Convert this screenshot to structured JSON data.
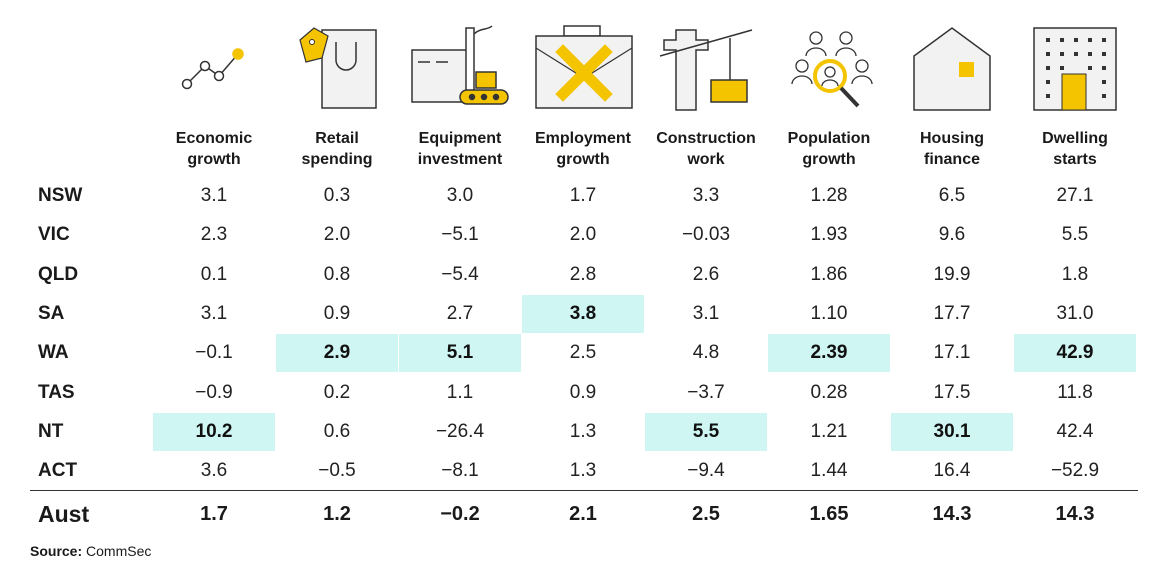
{
  "chart_data": {
    "type": "table",
    "columns": [
      {
        "label": "Economic\ngrowth",
        "icon": "line-chart-icon"
      },
      {
        "label": "Retail\nspending",
        "icon": "shopping-bag-icon"
      },
      {
        "label": "Equipment\ninvestment",
        "icon": "factory-conveyor-icon"
      },
      {
        "label": "Employment\ngrowth",
        "icon": "briefcase-cross-icon"
      },
      {
        "label": "Construction\nwork",
        "icon": "crane-icon"
      },
      {
        "label": "Population\ngrowth",
        "icon": "people-magnifier-icon"
      },
      {
        "label": "Housing\nfinance",
        "icon": "house-icon"
      },
      {
        "label": "Dwelling\nstarts",
        "icon": "apartment-building-icon"
      }
    ],
    "rows": [
      {
        "label": "NSW",
        "values": [
          "3.1",
          "0.3",
          "3.0",
          "1.7",
          "3.3",
          "1.28",
          "6.5",
          "27.1"
        ],
        "highlight": []
      },
      {
        "label": "VIC",
        "values": [
          "2.3",
          "2.0",
          "-5.1",
          "2.0",
          "-0.03",
          "1.93",
          "9.6",
          "5.5"
        ],
        "highlight": []
      },
      {
        "label": "QLD",
        "values": [
          "0.1",
          "0.8",
          "-5.4",
          "2.8",
          "2.6",
          "1.86",
          "19.9",
          "1.8"
        ],
        "highlight": []
      },
      {
        "label": "SA",
        "values": [
          "3.1",
          "0.9",
          "2.7",
          "3.8",
          "3.1",
          "1.10",
          "17.7",
          "31.0"
        ],
        "highlight": [
          3
        ]
      },
      {
        "label": "WA",
        "values": [
          "-0.1",
          "2.9",
          "5.1",
          "2.5",
          "4.8",
          "2.39",
          "17.1",
          "42.9"
        ],
        "highlight": [
          1,
          2,
          5,
          7
        ]
      },
      {
        "label": "TAS",
        "values": [
          "-0.9",
          "0.2",
          "1.1",
          "0.9",
          "-3.7",
          "0.28",
          "17.5",
          "11.8"
        ],
        "highlight": []
      },
      {
        "label": "NT",
        "values": [
          "10.2",
          "0.6",
          "-26.4",
          "1.3",
          "5.5",
          "1.21",
          "30.1",
          "42.4"
        ],
        "highlight": [
          0,
          4,
          6
        ]
      },
      {
        "label": "ACT",
        "values": [
          "3.6",
          "-0.5",
          "-8.1",
          "1.3",
          "-9.4",
          "1.44",
          "16.4",
          "-52.9"
        ],
        "highlight": []
      }
    ],
    "total": {
      "label": "Aust",
      "values": [
        "1.7",
        "1.2",
        "-0.2",
        "2.1",
        "2.5",
        "1.65",
        "14.3",
        "14.3"
      ]
    },
    "highlight_color": "#cff6f3",
    "icon_accent_color": "#f4c400"
  },
  "source": {
    "label": "Source:",
    "text": "CommSec"
  }
}
